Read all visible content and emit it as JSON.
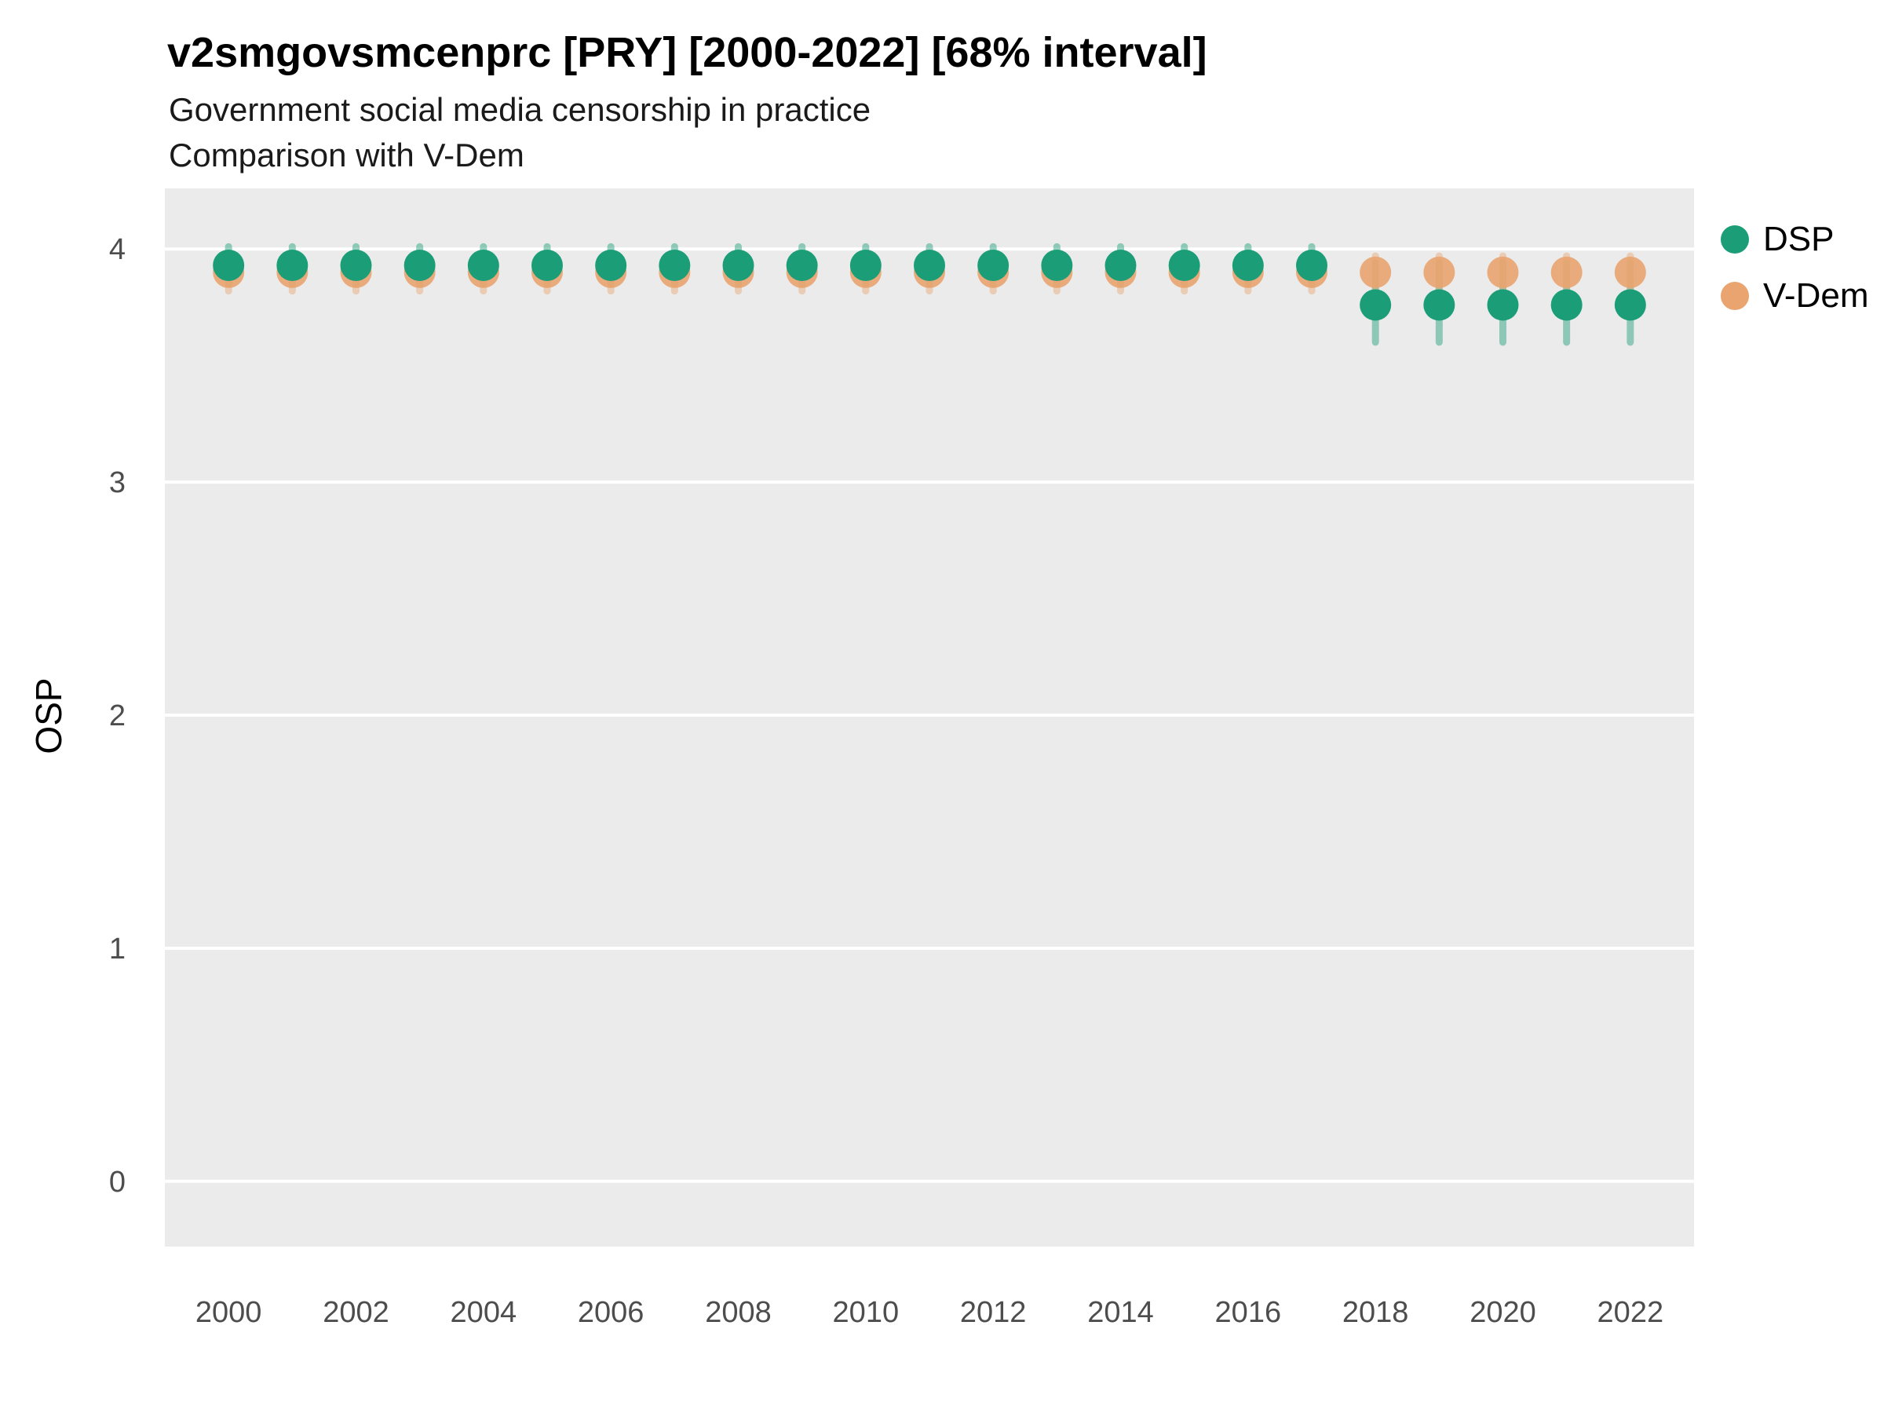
{
  "chart_data": {
    "type": "scatter",
    "title": "v2smgovsmcenprc [PRY] [2000-2022] [68% interval]",
    "subtitle": "Government social media censorship in practice",
    "subtitle2": "Comparison with V-Dem",
    "xlabel": "",
    "ylabel": "OSP",
    "xlim": [
      1999,
      2023
    ],
    "ylim": [
      -0.28,
      4.26
    ],
    "xticks": [
      2000,
      2002,
      2004,
      2006,
      2008,
      2010,
      2012,
      2014,
      2016,
      2018,
      2020,
      2022
    ],
    "yticks": [
      0,
      1,
      2,
      3,
      4
    ],
    "grid": "horizontal-major",
    "panel_background": "#EBEBEB",
    "gridline_color": "#FFFFFF",
    "tick_label_color": "#4D4D4D",
    "legend_position": "right-top",
    "series": [
      {
        "name": "DSP",
        "color": "#1B9E77",
        "interval_label": "68% interval",
        "x": [
          2000,
          2001,
          2002,
          2003,
          2004,
          2005,
          2006,
          2007,
          2008,
          2009,
          2010,
          2011,
          2012,
          2013,
          2014,
          2015,
          2016,
          2017,
          2018,
          2019,
          2020,
          2021,
          2022
        ],
        "y": [
          3.93,
          3.93,
          3.93,
          3.93,
          3.93,
          3.93,
          3.93,
          3.93,
          3.93,
          3.93,
          3.93,
          3.93,
          3.93,
          3.93,
          3.93,
          3.93,
          3.93,
          3.93,
          3.76,
          3.76,
          3.76,
          3.76,
          3.76
        ],
        "y_low": [
          3.85,
          3.85,
          3.85,
          3.85,
          3.85,
          3.85,
          3.85,
          3.85,
          3.85,
          3.85,
          3.85,
          3.85,
          3.85,
          3.85,
          3.85,
          3.85,
          3.85,
          3.85,
          3.6,
          3.6,
          3.6,
          3.6,
          3.6
        ],
        "y_high": [
          4.01,
          4.01,
          4.01,
          4.01,
          4.01,
          4.01,
          4.01,
          4.01,
          4.01,
          4.01,
          4.01,
          4.01,
          4.01,
          4.01,
          4.01,
          4.01,
          4.01,
          4.01,
          3.94,
          3.94,
          3.94,
          3.94,
          3.94
        ]
      },
      {
        "name": "V-Dem",
        "color": "#E9A46F",
        "interval_label": "68% interval",
        "x": [
          2000,
          2001,
          2002,
          2003,
          2004,
          2005,
          2006,
          2007,
          2008,
          2009,
          2010,
          2011,
          2012,
          2013,
          2014,
          2015,
          2016,
          2017,
          2018,
          2019,
          2020,
          2021,
          2022
        ],
        "y": [
          3.9,
          3.9,
          3.9,
          3.9,
          3.9,
          3.9,
          3.9,
          3.9,
          3.9,
          3.9,
          3.9,
          3.9,
          3.9,
          3.9,
          3.9,
          3.9,
          3.9,
          3.9,
          3.9,
          3.9,
          3.9,
          3.9,
          3.9
        ],
        "y_low": [
          3.82,
          3.82,
          3.82,
          3.82,
          3.82,
          3.82,
          3.82,
          3.82,
          3.82,
          3.82,
          3.82,
          3.82,
          3.82,
          3.82,
          3.82,
          3.82,
          3.82,
          3.82,
          3.82,
          3.82,
          3.82,
          3.82,
          3.82
        ],
        "y_high": [
          3.97,
          3.97,
          3.97,
          3.97,
          3.97,
          3.97,
          3.97,
          3.97,
          3.97,
          3.97,
          3.97,
          3.97,
          3.97,
          3.97,
          3.97,
          3.97,
          3.97,
          3.97,
          3.97,
          3.97,
          3.97,
          3.97,
          3.97
        ]
      }
    ]
  }
}
